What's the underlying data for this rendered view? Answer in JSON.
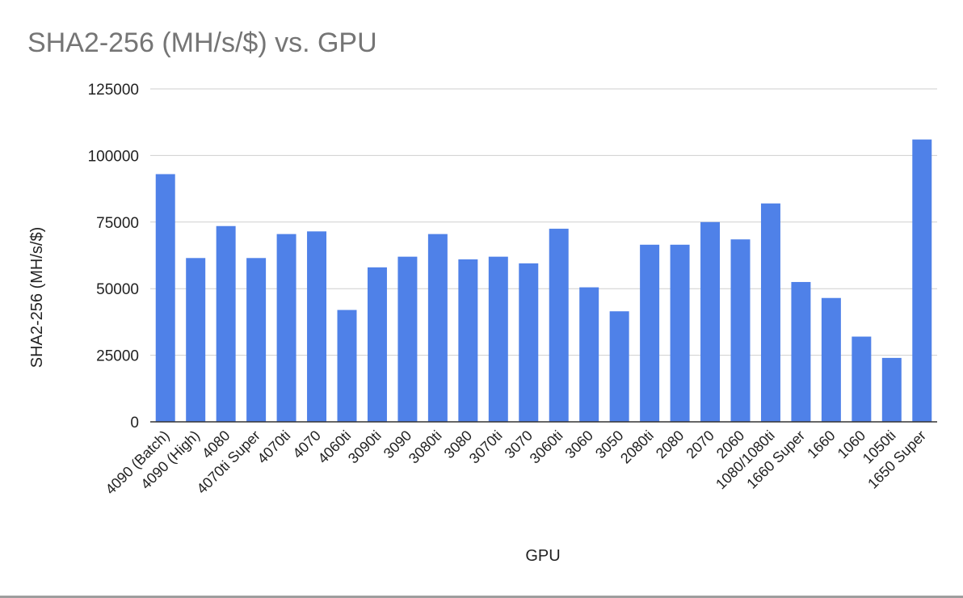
{
  "chart_data": {
    "type": "bar",
    "title": "SHA2-256 (MH/s/$) vs. GPU",
    "xlabel": "GPU",
    "ylabel": "SHA2-256 (MH/s/$)",
    "ylim": [
      0,
      125000
    ],
    "yticks": [
      0,
      25000,
      50000,
      75000,
      100000,
      125000
    ],
    "grid": true,
    "legend": "none",
    "bar_color": "#4f81e8",
    "categories": [
      "4090 (Batch)",
      "4090 (High)",
      "4080",
      "4070ti Super",
      "4070ti",
      "4070",
      "4060ti",
      "3090ti",
      "3090",
      "3080ti",
      "3080",
      "3070ti",
      "3070",
      "3060ti",
      "3060",
      "3050",
      "2080ti",
      "2080",
      "2070",
      "2060",
      "1080/1080ti",
      "1660 Super",
      "1660",
      "1060",
      "1050ti",
      "1650 Super"
    ],
    "values": [
      93000,
      61500,
      73500,
      61500,
      70500,
      71500,
      42000,
      58000,
      62000,
      70500,
      61000,
      62000,
      59500,
      72500,
      50500,
      41500,
      66500,
      66500,
      75000,
      68500,
      82000,
      52500,
      46500,
      32000,
      24000,
      106000
    ]
  }
}
